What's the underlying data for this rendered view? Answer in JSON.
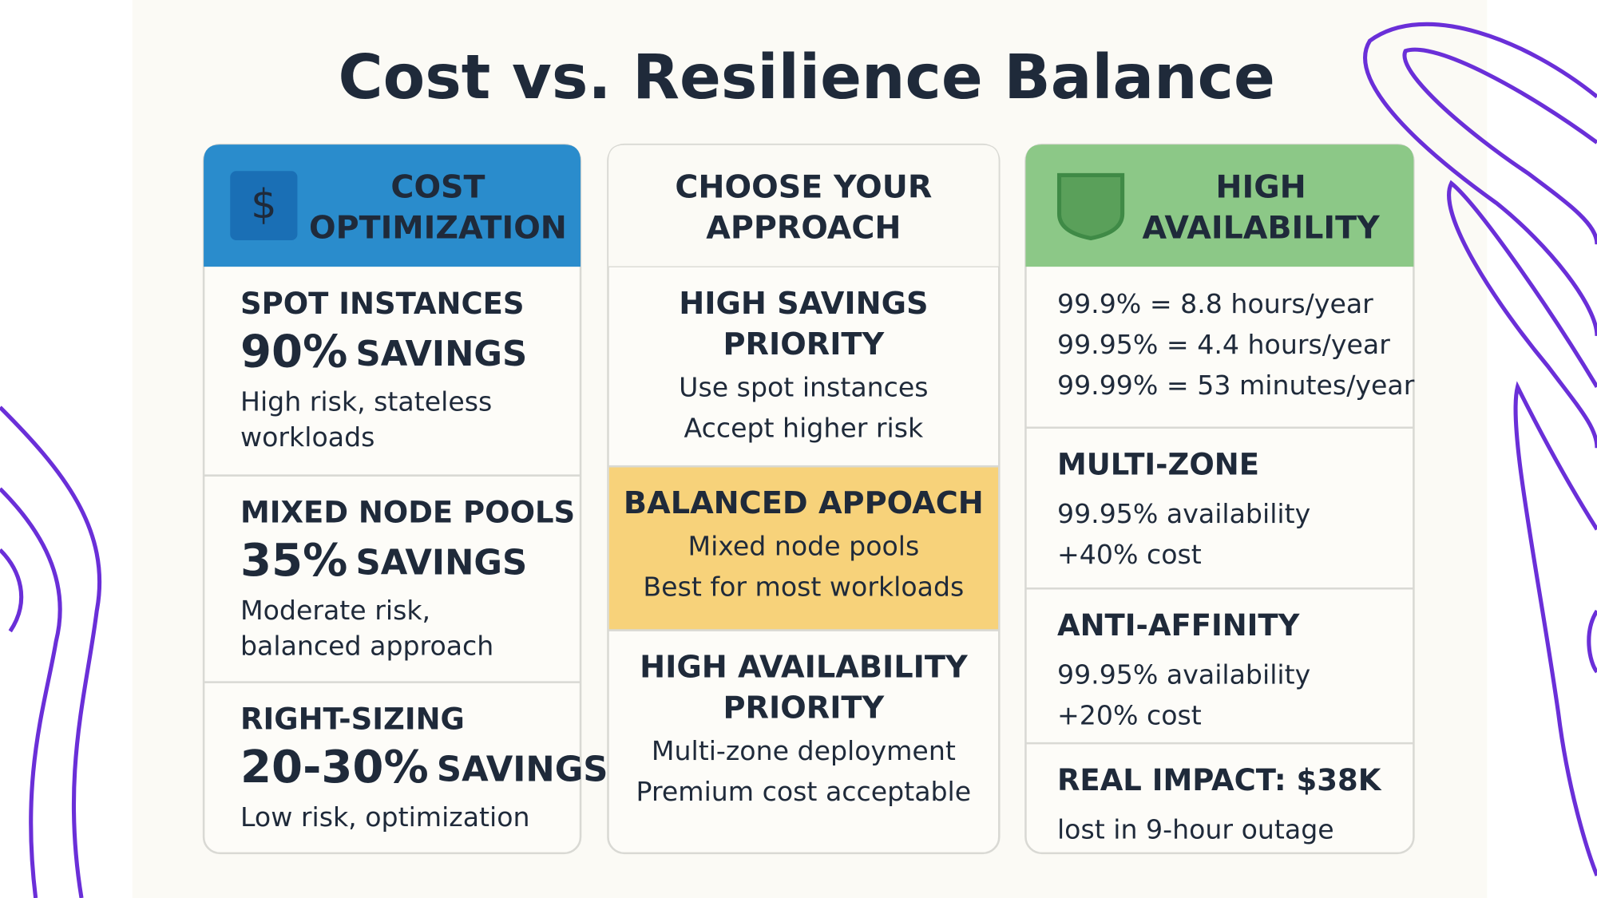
{
  "title": "Cost vs. Resilience Balance",
  "columns": [
    {
      "icon": "$",
      "header": [
        "COST",
        "OPTIMIZATION"
      ],
      "items": [
        {
          "title": "SPOT INSTANCES",
          "stat": "90%",
          "stat_unit": "SAVINGS",
          "lines": [
            "High risk, stateless",
            "workloads"
          ]
        },
        {
          "title": "MIXED NODE POOLS",
          "stat": "35%",
          "stat_unit": "SAVINGS",
          "lines": [
            "Moderate risk,",
            "balanced approach"
          ]
        },
        {
          "title": "RIGHT-SIZING",
          "stat": "20-30%",
          "stat_unit": "SAVINGS",
          "lines": [
            "Low risk, optimization"
          ]
        }
      ]
    },
    {
      "header": [
        "CHOOSE YOUR",
        "APPROACH"
      ],
      "items": [
        {
          "title": [
            "HIGH SAVINGS",
            "PRIORITY"
          ],
          "lines": [
            "Use spot instances",
            "Accept higher risk"
          ]
        },
        {
          "title": [
            "BALANCED APPOACH"
          ],
          "lines": [
            "Mixed node pools",
            "Best for most workloads"
          ]
        },
        {
          "title": [
            "HIGH AVAILABILITY",
            "PRIORITY"
          ],
          "lines": [
            "Multi-zone deployment",
            "Premium cost acceptable"
          ]
        }
      ]
    },
    {
      "header": [
        "HIGH",
        "AVAILABILITY"
      ],
      "items": [
        {
          "lines": [
            "99.9% = 8.8 hours/year",
            "99.95% = 4.4 hours/year",
            "99.99% = 53 minutes/year"
          ]
        },
        {
          "title": "MULTI-ZONE",
          "lines": [
            "99.95% availability",
            "+40% cost"
          ]
        },
        {
          "title": "ANTI-AFFINITY",
          "lines": [
            "99.95% availability",
            "+20% cost"
          ]
        },
        {
          "title": "REAL IMPACT: $38K",
          "lines": [
            "lost in 9-hour outage"
          ]
        }
      ]
    }
  ]
}
